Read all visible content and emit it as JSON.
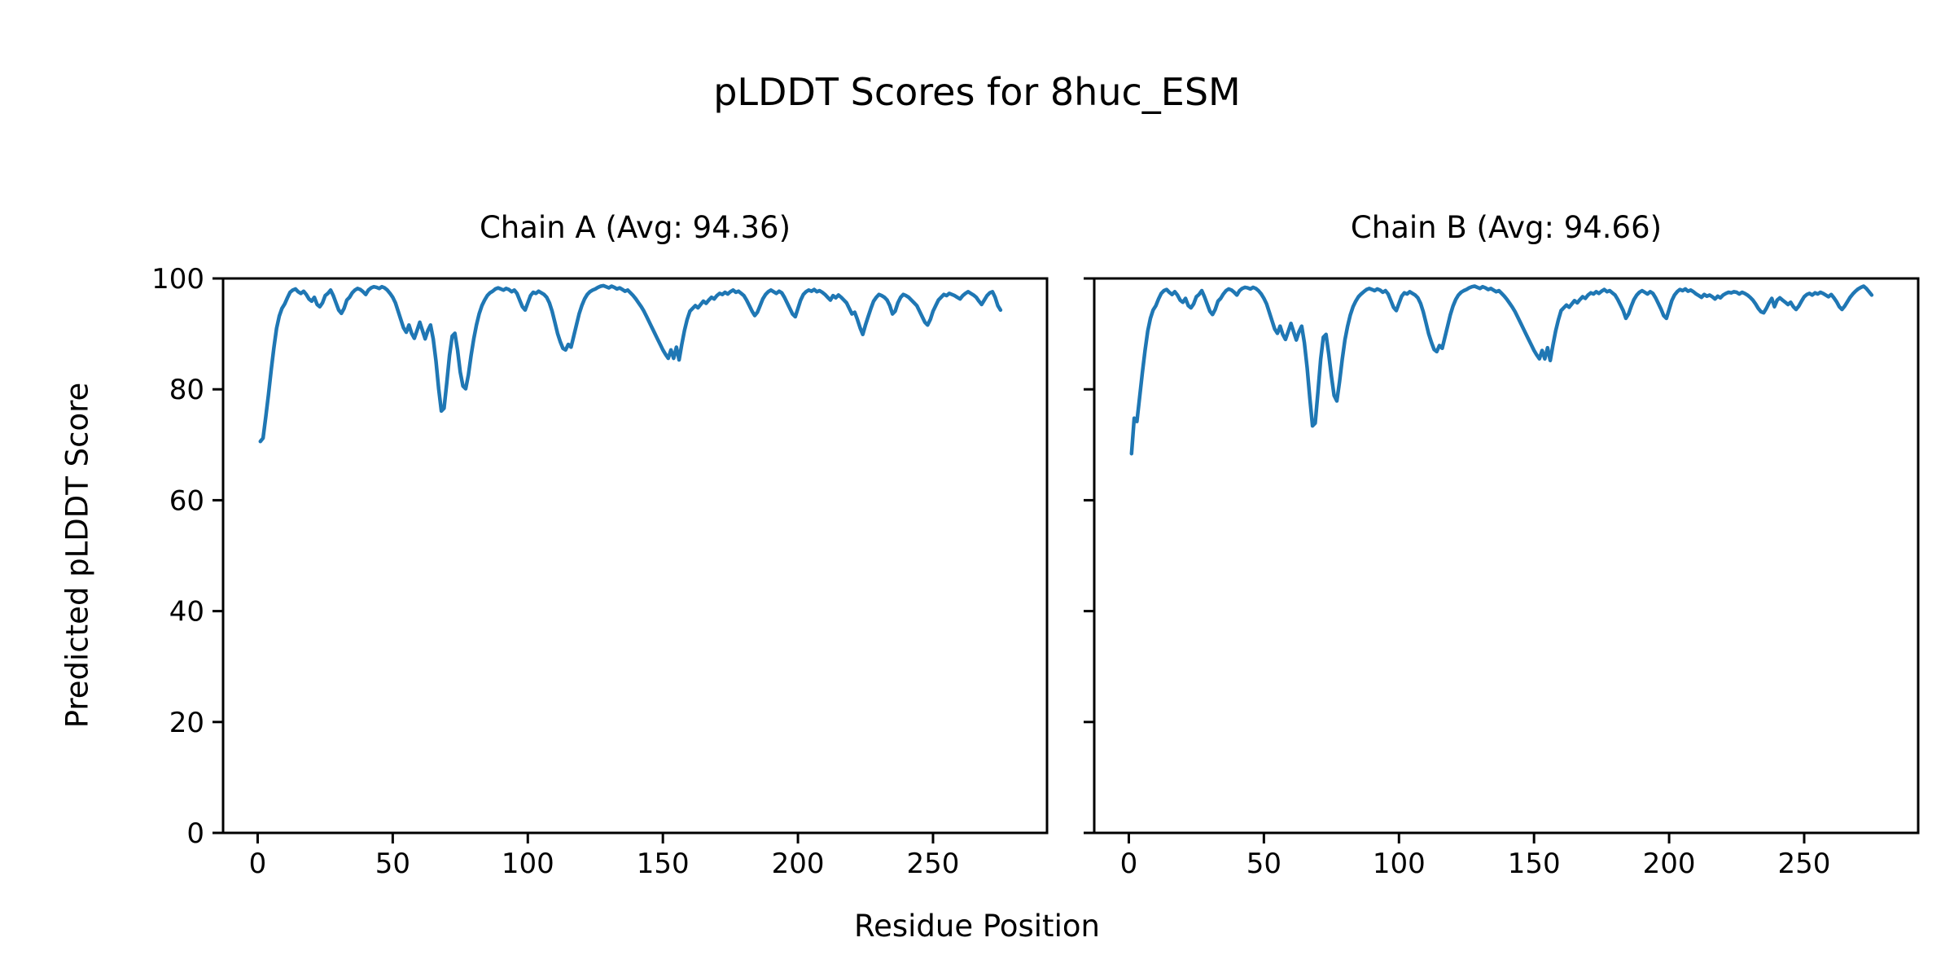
{
  "figure": {
    "suptitle": "pLDDT Scores for 8huc_ESM",
    "xlabel": "Residue Position",
    "ylabel": "Predicted pLDDT Score",
    "background_color": "#ffffff",
    "text_color": "#000000",
    "spine_color": "#000000"
  },
  "chart_data": [
    {
      "type": "line",
      "title": "Chain A (Avg: 94.36)",
      "series_name": "Chain A pLDDT",
      "avg_score": 94.36,
      "line_color": "#1f77b4",
      "x_start": 1,
      "xlim": [
        -12.8,
        292.2
      ],
      "ylim": [
        0,
        100
      ],
      "xticks": [
        0,
        50,
        100,
        150,
        200,
        250
      ],
      "yticks": [
        0,
        20,
        40,
        60,
        80,
        100
      ],
      "show_ytick_labels": true,
      "grid": false,
      "values": [
        70.6,
        71.2,
        75.0,
        79.0,
        83.5,
        87.5,
        91.0,
        93.2,
        94.6,
        95.4,
        96.5,
        97.5,
        97.9,
        98.1,
        97.6,
        97.3,
        97.7,
        97.1,
        96.3,
        95.9,
        96.6,
        95.3,
        94.9,
        95.6,
        96.9,
        97.3,
        97.9,
        96.9,
        95.6,
        94.3,
        93.7,
        94.6,
        96.1,
        96.6,
        97.4,
        97.9,
        98.2,
        98.0,
        97.6,
        97.1,
        97.9,
        98.3,
        98.5,
        98.4,
        98.2,
        98.5,
        98.3,
        97.9,
        97.3,
        96.6,
        95.6,
        94.1,
        92.6,
        91.1,
        90.3,
        91.6,
        90.1,
        89.2,
        90.6,
        92.1,
        90.6,
        89.1,
        90.6,
        91.6,
        89.1,
        85.1,
        80.1,
        76.1,
        76.6,
        81.1,
        86.1,
        89.6,
        90.1,
        87.1,
        83.1,
        80.6,
        80.1,
        82.6,
        86.1,
        89.1,
        91.6,
        93.6,
        95.1,
        96.1,
        96.9,
        97.4,
        97.7,
        98.1,
        98.3,
        98.1,
        97.9,
        98.2,
        98.0,
        97.6,
        97.9,
        97.3,
        96.1,
        94.9,
        94.3,
        95.6,
        96.9,
        97.5,
        97.3,
        97.7,
        97.4,
        97.1,
        96.6,
        95.6,
        94.1,
        92.1,
        90.1,
        88.6,
        87.4,
        87.1,
        88.1,
        87.6,
        89.6,
        91.6,
        93.6,
        95.1,
        96.3,
        97.1,
        97.6,
        97.9,
        98.1,
        98.4,
        98.6,
        98.7,
        98.5,
        98.3,
        98.6,
        98.4,
        98.1,
        98.3,
        98.0,
        97.7,
        97.9,
        97.4,
        96.9,
        96.3,
        95.6,
        94.9,
        94.1,
        93.1,
        92.1,
        91.1,
        90.1,
        89.1,
        88.1,
        87.1,
        86.3,
        85.6,
        87.1,
        85.6,
        87.6,
        85.3,
        88.1,
        90.6,
        92.6,
        94.1,
        94.6,
        95.1,
        94.7,
        95.3,
        95.9,
        95.5,
        96.1,
        96.6,
        96.3,
        96.9,
        97.3,
        97.1,
        97.5,
        97.2,
        97.6,
        97.9,
        97.5,
        97.7,
        97.3,
        96.9,
        96.1,
        95.1,
        94.1,
        93.3,
        93.9,
        95.1,
        96.3,
        97.1,
        97.6,
        97.9,
        97.6,
        97.3,
        97.7,
        97.4,
        96.6,
        95.6,
        94.6,
        93.6,
        93.1,
        94.6,
        96.1,
        97.1,
        97.6,
        97.9,
        97.7,
        98.0,
        97.6,
        97.8,
        97.5,
        97.1,
        96.6,
        96.1,
        96.9,
        96.5,
        97.0,
        96.6,
        96.1,
        95.6,
        94.6,
        93.6,
        93.9,
        92.6,
        91.1,
        89.9,
        91.6,
        93.1,
        94.6,
        95.9,
        96.6,
        97.1,
        96.9,
        96.6,
        96.1,
        95.1,
        93.6,
        94.1,
        95.6,
        96.6,
        97.1,
        96.9,
        96.6,
        96.1,
        95.6,
        95.1,
        94.1,
        93.1,
        92.1,
        91.6,
        92.6,
        94.1,
        95.1,
        96.1,
        96.6,
        97.1,
        96.9,
        97.3,
        97.1,
        96.9,
        96.6,
        96.3,
        96.9,
        97.3,
        97.6,
        97.3,
        97.0,
        96.6,
        95.9,
        95.3,
        96.1,
        96.9,
        97.4,
        97.6,
        96.6,
        95.1,
        94.3
      ]
    },
    {
      "type": "line",
      "title": "Chain B (Avg: 94.66)",
      "series_name": "Chain B pLDDT",
      "avg_score": 94.66,
      "line_color": "#1f77b4",
      "x_start": 1,
      "xlim": [
        -12.8,
        292.2
      ],
      "ylim": [
        0,
        100
      ],
      "xticks": [
        0,
        50,
        100,
        150,
        200,
        250
      ],
      "yticks": [
        0,
        20,
        40,
        60,
        80,
        100
      ],
      "show_ytick_labels": false,
      "grid": false,
      "values": [
        68.4,
        74.8,
        74.2,
        78.5,
        83.0,
        87.0,
        90.5,
        92.8,
        94.3,
        95.1,
        96.3,
        97.3,
        97.8,
        98.0,
        97.5,
        97.1,
        97.6,
        97.0,
        96.1,
        95.7,
        96.4,
        95.1,
        94.7,
        95.4,
        96.7,
        97.1,
        97.8,
        96.7,
        95.4,
        94.1,
        93.5,
        94.4,
        95.9,
        96.4,
        97.2,
        97.8,
        98.1,
        97.9,
        97.5,
        97.0,
        97.8,
        98.2,
        98.4,
        98.3,
        98.1,
        98.4,
        98.2,
        97.8,
        97.2,
        96.4,
        95.4,
        93.9,
        92.4,
        90.9,
        90.1,
        91.4,
        89.9,
        89.0,
        90.4,
        91.9,
        90.4,
        88.9,
        90.4,
        91.4,
        88.4,
        83.9,
        78.4,
        73.4,
        73.9,
        79.4,
        85.4,
        89.4,
        89.9,
        86.4,
        82.4,
        78.9,
        77.9,
        81.4,
        85.4,
        88.9,
        91.4,
        93.4,
        94.9,
        95.9,
        96.7,
        97.2,
        97.6,
        98.0,
        98.2,
        98.0,
        97.8,
        98.1,
        97.9,
        97.5,
        97.8,
        97.2,
        96.0,
        94.8,
        94.2,
        95.5,
        96.8,
        97.4,
        97.2,
        97.6,
        97.3,
        97.0,
        96.5,
        95.5,
        94.0,
        92.0,
        90.0,
        88.5,
        87.2,
        86.8,
        87.9,
        87.4,
        89.4,
        91.4,
        93.4,
        95.0,
        96.2,
        97.0,
        97.5,
        97.8,
        98.0,
        98.3,
        98.5,
        98.6,
        98.4,
        98.2,
        98.5,
        98.3,
        98.0,
        98.2,
        97.9,
        97.6,
        97.8,
        97.3,
        96.8,
        96.2,
        95.5,
        94.8,
        94.0,
        93.0,
        92.0,
        91.0,
        90.0,
        89.0,
        88.0,
        87.0,
        86.2,
        85.5,
        87.0,
        85.5,
        87.5,
        85.2,
        88.0,
        90.5,
        92.5,
        94.2,
        94.7,
        95.2,
        94.8,
        95.4,
        96.0,
        95.6,
        96.2,
        96.7,
        96.4,
        97.0,
        97.4,
        97.2,
        97.6,
        97.3,
        97.7,
        98.0,
        97.6,
        97.8,
        97.4,
        97.0,
        96.2,
        95.2,
        94.2,
        92.8,
        93.6,
        95.0,
        96.2,
        97.0,
        97.5,
        97.8,
        97.5,
        97.2,
        97.6,
        97.3,
        96.5,
        95.5,
        94.5,
        93.3,
        92.8,
        94.4,
        96.0,
        97.0,
        97.6,
        98.0,
        97.8,
        98.1,
        97.7,
        97.9,
        97.6,
        97.2,
        96.9,
        96.6,
        97.1,
        96.8,
        97.0,
        96.7,
        96.3,
        96.8,
        96.5,
        97.0,
        97.3,
        97.5,
        97.4,
        97.6,
        97.5,
        97.2,
        97.5,
        97.3,
        97.0,
        96.6,
        96.1,
        95.4,
        94.6,
        94.0,
        93.8,
        94.6,
        95.6,
        96.4,
        94.9,
        96.1,
        96.5,
        96.1,
        95.7,
        95.3,
        95.7,
        94.9,
        94.4,
        95.0,
        95.9,
        96.7,
        97.1,
        97.3,
        97.0,
        97.4,
        97.2,
        97.5,
        97.3,
        97.0,
        96.7,
        97.1,
        96.5,
        95.8,
        94.9,
        94.4,
        95.0,
        95.8,
        96.6,
        97.2,
        97.7,
        98.1,
        98.4,
        98.6,
        98.2,
        97.6,
        97.0
      ]
    }
  ]
}
